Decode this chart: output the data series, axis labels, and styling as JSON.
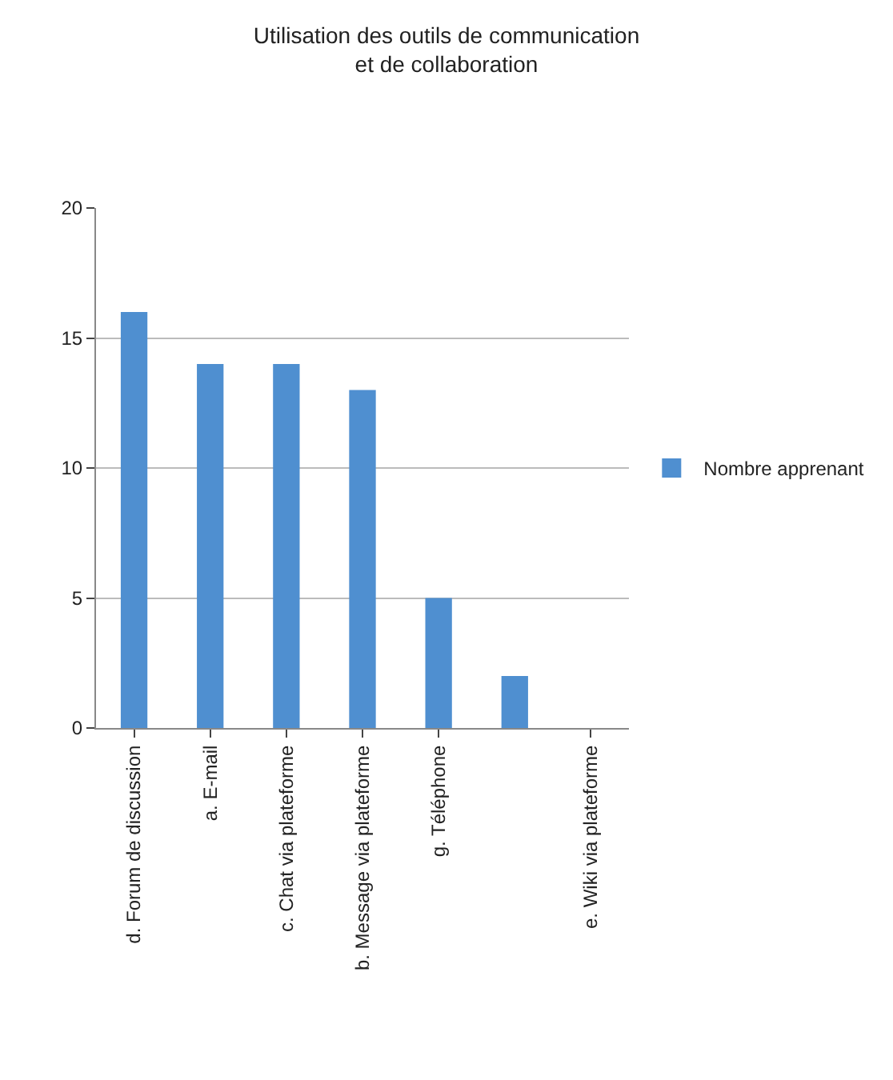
{
  "chart_data": {
    "type": "bar",
    "title": "Utilisation des outils de communication\net de collaboration",
    "categories": [
      "d. Forum de discussion",
      "a. E-mail",
      "c. Chat via plateforme",
      "b. Message via plateforme",
      "g. Téléphone",
      null,
      "e. Wiki via plateforme"
    ],
    "series": [
      {
        "name": "Nombre apprenant",
        "color": "#4f8fd0",
        "values": [
          16,
          14,
          14,
          13,
          5,
          2,
          0
        ]
      }
    ],
    "ylim": [
      0,
      20
    ],
    "yticks": [
      0,
      5,
      10,
      15,
      20
    ],
    "grid": "y",
    "legend": "right"
  }
}
